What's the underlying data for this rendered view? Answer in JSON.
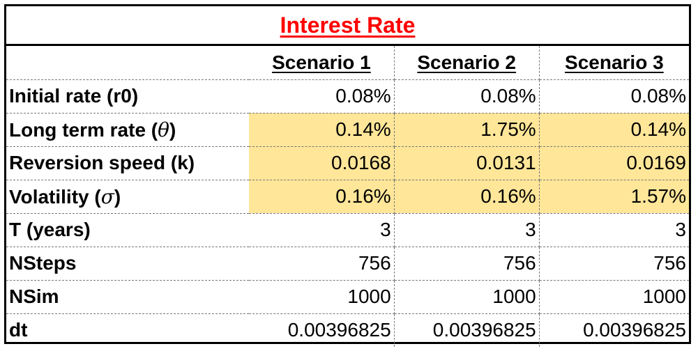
{
  "title": "Interest Rate",
  "headers": [
    "Scenario 1",
    "Scenario 2",
    "Scenario 3"
  ],
  "rows": [
    {
      "label": "Initial rate (r0)",
      "values": [
        "0.08%",
        "0.08%",
        "0.08%"
      ],
      "highlight": false
    },
    {
      "label_pre": "Long term rate (",
      "label_sym": "θ",
      "label_post": ")",
      "values": [
        "0.14%",
        "1.75%",
        "0.14%"
      ],
      "highlight": true
    },
    {
      "label": "Reversion speed (k)",
      "values": [
        "0.0168",
        "0.0131",
        "0.0169"
      ],
      "highlight": true
    },
    {
      "label_pre": "Volatility (",
      "label_sym": "σ",
      "label_post": ")",
      "values": [
        "0.16%",
        "0.16%",
        "1.57%"
      ],
      "highlight": true
    },
    {
      "label": "T (years)",
      "values": [
        "3",
        "3",
        "3"
      ],
      "highlight": false
    },
    {
      "label": "NSteps",
      "values": [
        "756",
        "756",
        "756"
      ],
      "highlight": false
    },
    {
      "label": "NSim",
      "values": [
        "1000",
        "1000",
        "1000"
      ],
      "highlight": false
    },
    {
      "label": "dt",
      "values": [
        "0.00396825",
        "0.00396825",
        "0.00396825"
      ],
      "highlight": false
    }
  ],
  "colors": {
    "title": "#ff0000",
    "highlight": "#ffe699"
  }
}
